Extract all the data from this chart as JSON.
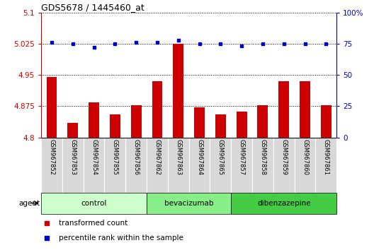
{
  "title": "GDS5678 / 1445460_at",
  "samples": [
    "GSM967852",
    "GSM967853",
    "GSM967854",
    "GSM967855",
    "GSM967856",
    "GSM967862",
    "GSM967863",
    "GSM967864",
    "GSM967865",
    "GSM967857",
    "GSM967858",
    "GSM967859",
    "GSM967860",
    "GSM967861"
  ],
  "bar_values": [
    4.945,
    4.835,
    4.885,
    4.855,
    4.878,
    4.935,
    5.025,
    4.873,
    4.855,
    4.862,
    4.878,
    4.935,
    4.935,
    4.878
  ],
  "dot_values": [
    76,
    75,
    72,
    75,
    76,
    76,
    78,
    75,
    75,
    73,
    75,
    75,
    75,
    75
  ],
  "bar_color": "#cc0000",
  "dot_color": "#0000cc",
  "ylim_left": [
    4.8,
    5.1
  ],
  "ylim_right": [
    0,
    100
  ],
  "yticks_left": [
    4.8,
    4.875,
    4.95,
    5.025,
    5.1
  ],
  "yticks_right": [
    0,
    25,
    50,
    75,
    100
  ],
  "ytick_labels_left": [
    "4.8",
    "4.875",
    "4.95",
    "5.025",
    "5.1"
  ],
  "ytick_labels_right": [
    "0",
    "25",
    "50",
    "75",
    "100%"
  ],
  "groups": [
    {
      "label": "control",
      "start": 0,
      "end": 5,
      "color": "#ccffcc"
    },
    {
      "label": "bevacizumab",
      "start": 5,
      "end": 9,
      "color": "#88ee88"
    },
    {
      "label": "dibenzazepine",
      "start": 9,
      "end": 14,
      "color": "#44cc44"
    }
  ],
  "agent_label": "agent",
  "legend_items": [
    {
      "label": "transformed count",
      "color": "#cc0000"
    },
    {
      "label": "percentile rank within the sample",
      "color": "#0000cc"
    }
  ],
  "left_axis_color": "#cc0000",
  "right_axis_color": "#0000cc",
  "sample_box_color": "#d8d8d8",
  "bar_bottom": 4.8,
  "figsize": [
    5.28,
    3.54
  ],
  "dpi": 100
}
